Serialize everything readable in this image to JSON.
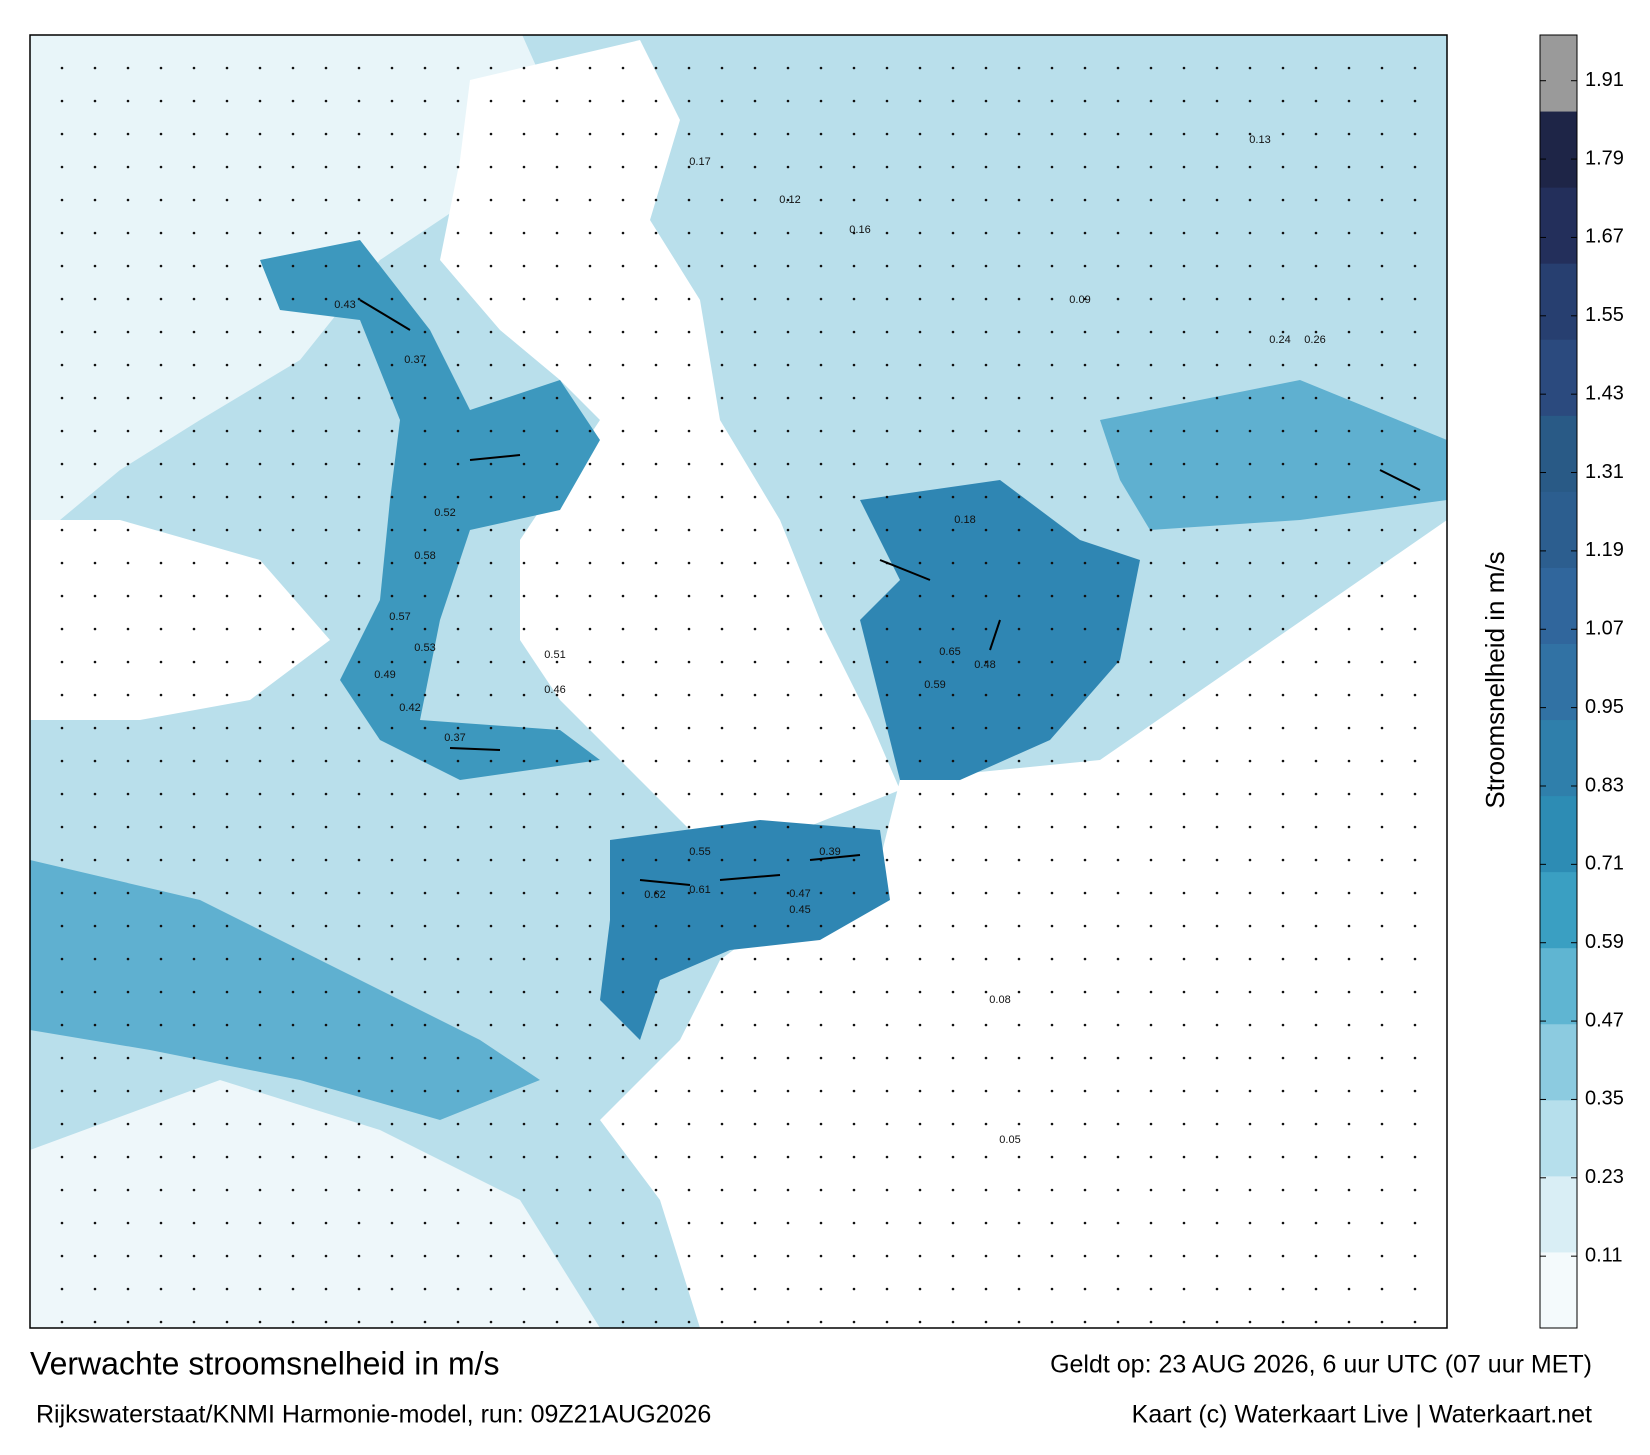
{
  "title": "Verwachte stroomsnelheid in m/s",
  "subtitle": "Rijkswaterstaat/KNMI Harmonie-model, run: 09Z21AUG2026",
  "valid": "Geldt op: 23 AUG 2026, 6 uur UTC (07 uur MET)",
  "credit": "Kaart (c) Waterkaart Live | Waterkaart.net",
  "colorbar": {
    "label": "Stroomsnelheid in m/s",
    "ylim": [
      0,
      1.98
    ],
    "yticks": [
      0.11,
      0.23,
      0.35,
      0.47,
      0.59,
      0.71,
      0.83,
      0.95,
      1.07,
      1.19,
      1.31,
      1.43,
      1.55,
      1.67,
      1.79,
      1.91
    ],
    "colors": [
      "#f4fafc",
      "#d9eef5",
      "#b6dfec",
      "#8ccbe0",
      "#5fb5d2",
      "#3a9fc2",
      "#2d8cb4",
      "#2f7fab",
      "#3172a4",
      "#30669c",
      "#2c5e8f",
      "#295a86",
      "#2b4a7e",
      "#273f70",
      "#232f5b",
      "#1e2547",
      "#9a9a9a"
    ]
  },
  "map_labels": [
    "0.43",
    "0.37",
    "0.52",
    "0.58",
    "0.57",
    "0.53",
    "0.49",
    "0.51",
    "0.46",
    "0.65",
    "0.59",
    "0.48",
    "0.55",
    "0.61",
    "0.62",
    "0.47",
    "0.45",
    "0.39",
    "0.42",
    "0.37",
    "0.12",
    "0.16",
    "0.17",
    "0.13",
    "0.09",
    "0.05",
    "0.08",
    "0.24",
    "0.26",
    "0.18"
  ]
}
